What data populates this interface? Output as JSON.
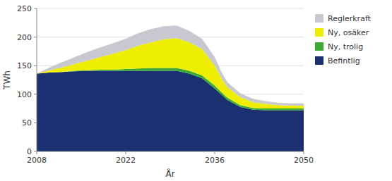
{
  "chart_data": {
    "type": "area",
    "stacked": true,
    "x": [
      2008,
      2010,
      2012,
      2014,
      2016,
      2018,
      2020,
      2022,
      2024,
      2026,
      2028,
      2030,
      2032,
      2034,
      2036,
      2037,
      2038,
      2040,
      2042,
      2044,
      2046,
      2048,
      2050
    ],
    "series": [
      {
        "name": "Befintlig",
        "color": "#1a3070",
        "values": [
          136,
          138,
          139,
          140,
          141,
          141,
          141,
          141,
          141,
          141,
          141,
          141,
          136,
          128,
          110,
          100,
          90,
          78,
          73,
          72,
          72,
          72,
          72
        ]
      },
      {
        "name": "Ny, trolig",
        "color": "#3aaa35",
        "values": [
          0,
          0,
          0,
          1,
          1,
          2,
          2,
          3,
          4,
          5,
          5,
          5,
          5,
          5,
          5,
          4,
          4,
          3,
          3,
          3,
          3,
          3,
          3
        ]
      },
      {
        "name": "Ny, osäker",
        "color": "#eeee00",
        "values": [
          0,
          4,
          8,
          12,
          17,
          22,
          28,
          33,
          40,
          45,
          50,
          52,
          50,
          46,
          35,
          25,
          18,
          14,
          10,
          8,
          6,
          5,
          5
        ]
      },
      {
        "name": "Reglerkraft",
        "color": "#c8c8d0",
        "values": [
          0,
          5,
          9,
          12,
          15,
          17,
          18,
          20,
          22,
          23,
          23,
          22,
          20,
          18,
          15,
          11,
          9,
          7,
          6,
          5,
          4,
          4,
          4
        ]
      }
    ],
    "x_label": "År",
    "y_label": "TWh",
    "xlim": [
      2008,
      2050
    ],
    "xticks": [
      2008,
      2022,
      2036,
      2050
    ],
    "ylim": [
      0,
      250
    ],
    "yticks": [
      0,
      50,
      100,
      150,
      200,
      250
    ],
    "grid": true,
    "legend": "right"
  }
}
